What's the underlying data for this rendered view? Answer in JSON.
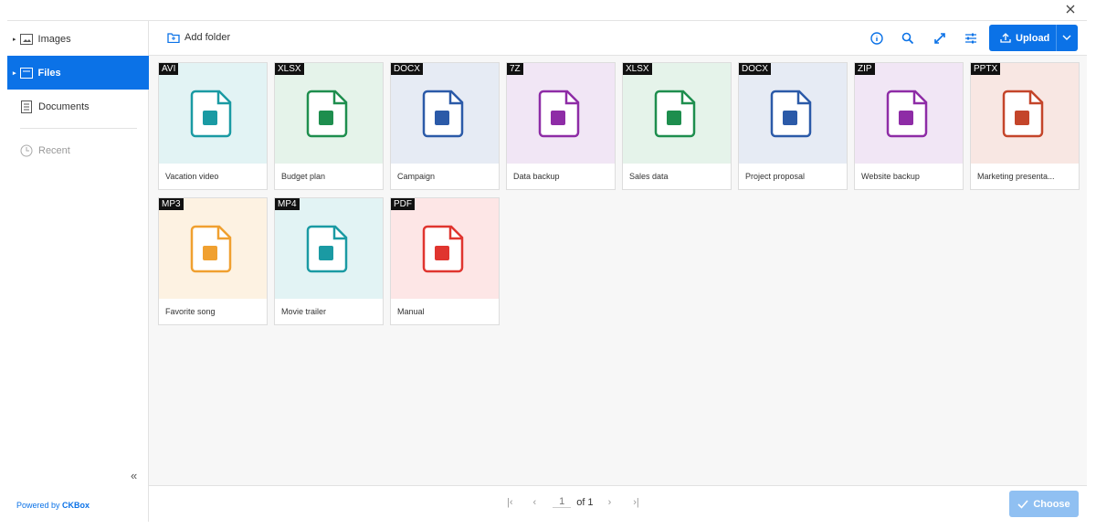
{
  "sidebar": {
    "items": [
      "Images",
      "Files",
      "Documents",
      "Recent"
    ],
    "footer": {
      "prefix": "Powered by",
      "brand": "CKBox"
    }
  },
  "toolbar": {
    "add_folder": "Add folder",
    "upload": "Upload"
  },
  "files": [
    {
      "type": "AVI",
      "name": "Vacation video",
      "color": "#1a9aa3",
      "tint": "#e2f3f4"
    },
    {
      "type": "XLSX",
      "name": "Budget plan",
      "color": "#1e8e4e",
      "tint": "#e5f3ea"
    },
    {
      "type": "DOCX",
      "name": "Campaign",
      "color": "#2b5aa8",
      "tint": "#e6ebf4"
    },
    {
      "type": "7Z",
      "name": "Data backup",
      "color": "#8e2ca6",
      "tint": "#f1e6f5"
    },
    {
      "type": "XLSX",
      "name": "Sales data",
      "color": "#1e8e4e",
      "tint": "#e5f3ea"
    },
    {
      "type": "DOCX",
      "name": "Project proposal",
      "color": "#2b5aa8",
      "tint": "#e6ebf4"
    },
    {
      "type": "ZIP",
      "name": "Website backup",
      "color": "#8e2ca6",
      "tint": "#f1e6f5"
    },
    {
      "type": "PPTX",
      "name": "Marketing presenta...",
      "color": "#c4452a",
      "tint": "#f8e7e3"
    },
    {
      "type": "MP3",
      "name": "Favorite song",
      "color": "#f0a030",
      "tint": "#fdf2e2"
    },
    {
      "type": "MP4",
      "name": "Movie trailer",
      "color": "#1a9aa3",
      "tint": "#e2f3f4"
    },
    {
      "type": "PDF",
      "name": "Manual",
      "color": "#e0352f",
      "tint": "#fde6e6"
    }
  ],
  "pagination": {
    "page": "1",
    "of": "of 1"
  },
  "actions": {
    "choose": "Choose"
  }
}
